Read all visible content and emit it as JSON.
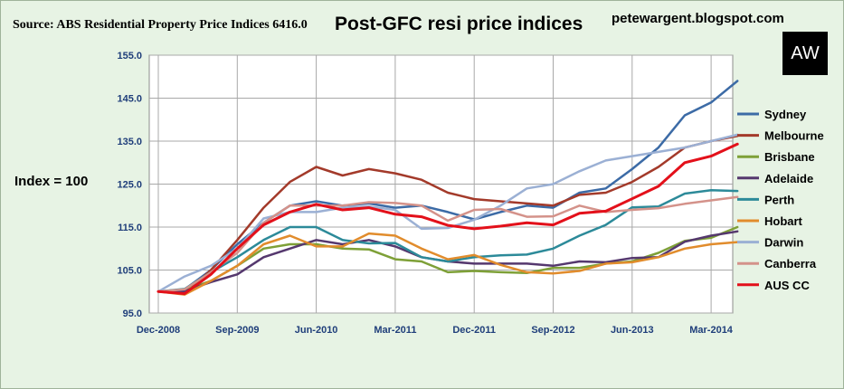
{
  "header": {
    "source": "Source: ABS Residential Property Price Indices 6416.0",
    "title": "Post-GFC resi price indices",
    "blog": "petewargent.blogspot.com",
    "logo_text": "AW",
    "index_note": "Index = 100"
  },
  "chart_data": {
    "type": "line",
    "title": "Post-GFC resi price indices",
    "xlabel": "",
    "ylabel": "Index = 100",
    "ylim": [
      95,
      155
    ],
    "yticks": [
      "95.0",
      "105.0",
      "115.0",
      "125.0",
      "135.0",
      "145.0",
      "155.0"
    ],
    "yticks_values": [
      95,
      105,
      115,
      125,
      135,
      145,
      155
    ],
    "x_tick_labels": [
      "Dec-2008",
      "Sep-2009",
      "Jun-2010",
      "Mar-2011",
      "Dec-2011",
      "Sep-2012",
      "Jun-2013",
      "Mar-2014"
    ],
    "x_tick_indices": [
      0,
      3,
      6,
      9,
      12,
      15,
      18,
      21
    ],
    "categories": [
      "Dec-2008",
      "Mar-2009",
      "Jun-2009",
      "Sep-2009",
      "Dec-2009",
      "Mar-2010",
      "Jun-2010",
      "Sep-2010",
      "Dec-2010",
      "Mar-2011",
      "Jun-2011",
      "Sep-2011",
      "Dec-2011",
      "Mar-2012",
      "Jun-2012",
      "Sep-2012",
      "Dec-2012",
      "Mar-2013",
      "Jun-2013",
      "Sep-2013",
      "Dec-2013",
      "Mar-2014",
      "Jun-2014"
    ],
    "grid": true,
    "legend_position": "right",
    "series": [
      {
        "name": "Sydney",
        "color": "#3c6ba6",
        "width": 2.5,
        "values": [
          100,
          100.5,
          105,
          111,
          116,
          120,
          121,
          120,
          120.5,
          119.5,
          120,
          118.5,
          116.8,
          118.5,
          120,
          119.5,
          123,
          124,
          128.5,
          133.5,
          141,
          144,
          149
        ]
      },
      {
        "name": "Melbourne",
        "color": "#a33a2a",
        "width": 2.5,
        "values": [
          100,
          99.5,
          105,
          112,
          119.5,
          125.5,
          129,
          127,
          128.5,
          127.5,
          126,
          123,
          121.5,
          121,
          120.5,
          120,
          122.5,
          123,
          125.5,
          129,
          133.5,
          135,
          136.2
        ]
      },
      {
        "name": "Brisbane",
        "color": "#7ea037",
        "width": 2.5,
        "values": [
          100,
          100.3,
          102.5,
          106,
          110,
          111,
          111,
          110,
          109.8,
          107.5,
          107,
          104.5,
          104.8,
          104.5,
          104.3,
          105.5,
          105.5,
          106.5,
          107,
          109,
          111.8,
          112.5,
          115
        ]
      },
      {
        "name": "Adelaide",
        "color": "#55386e",
        "width": 2.5,
        "values": [
          100,
          100.1,
          102.2,
          104,
          108,
          110,
          112,
          111,
          112,
          110.5,
          108,
          107,
          106.5,
          106.5,
          106.5,
          106,
          107,
          106.8,
          107.8,
          108,
          111.6,
          113,
          114
        ]
      },
      {
        "name": "Perth",
        "color": "#2c8a99",
        "width": 2.5,
        "values": [
          100,
          100.6,
          104.5,
          108,
          112,
          115,
          115,
          112,
          111.2,
          111.3,
          108,
          107,
          108,
          108.4,
          108.6,
          110,
          113,
          115.5,
          119.6,
          119.8,
          122.8,
          123.6,
          123.4
        ]
      },
      {
        "name": "Hobart",
        "color": "#e18c2c",
        "width": 2.5,
        "values": [
          100,
          99.3,
          102.5,
          106,
          111,
          113,
          110.5,
          110.5,
          113.5,
          113,
          110,
          107.5,
          108.5,
          106.2,
          104.5,
          104.2,
          104.8,
          106.5,
          106.8,
          108,
          110,
          111,
          111.5
        ]
      },
      {
        "name": "Darwin",
        "color": "#9bb0d4",
        "width": 2.5,
        "values": [
          100,
          103.5,
          106,
          110,
          117,
          118.5,
          118.5,
          119.5,
          119.8,
          119,
          114.6,
          114.8,
          116.7,
          120,
          124,
          125,
          128,
          130.5,
          131.5,
          132.5,
          133.5,
          135,
          136.5
        ]
      },
      {
        "name": "Canberra",
        "color": "#d4928a",
        "width": 2.5,
        "values": [
          100,
          100.5,
          104.5,
          109,
          116,
          120,
          120,
          120,
          120.8,
          120.6,
          120,
          116.5,
          119,
          119.2,
          117.4,
          117.5,
          120,
          118.5,
          119,
          119.4,
          120.4,
          121.2,
          122
        ]
      },
      {
        "name": "AUS CC",
        "color": "#e3101a",
        "width": 3,
        "values": [
          100,
          99.5,
          104,
          110,
          115.5,
          118.5,
          120.3,
          119,
          119.5,
          118,
          117.4,
          115.4,
          114.6,
          115.2,
          116,
          115.5,
          118.2,
          118.7,
          121.6,
          124.5,
          130,
          131.5,
          134.3
        ]
      }
    ]
  }
}
